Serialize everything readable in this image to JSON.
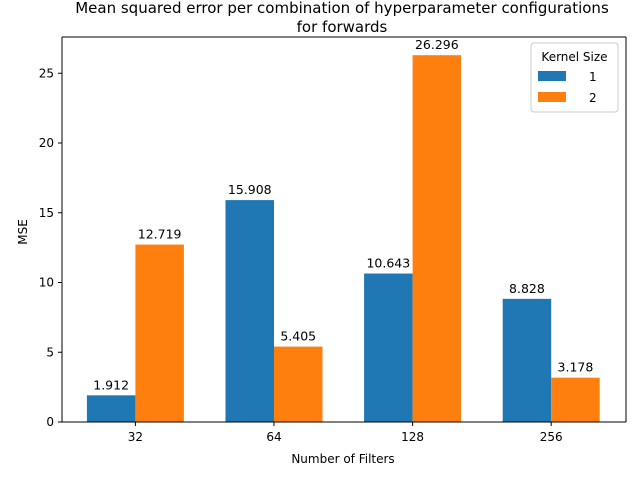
{
  "chart_data": {
    "type": "bar",
    "title_lines": [
      "Mean squared error per combination of hyperparameter configurations",
      "for forwards"
    ],
    "xlabel": "Number of Filters",
    "ylabel": "MSE",
    "categories": [
      "32",
      "64",
      "128",
      "256"
    ],
    "ylim": [
      0,
      27.6
    ],
    "yticks": [
      0,
      5,
      10,
      15,
      20,
      25
    ],
    "grid": false,
    "legend": {
      "title": "Kernel Size",
      "placement": "top-right"
    },
    "series": [
      {
        "name": "1",
        "color": "#1f77b4",
        "values": [
          1.912,
          15.908,
          10.643,
          8.828
        ]
      },
      {
        "name": "2",
        "color": "#ff7f0e",
        "values": [
          12.719,
          5.405,
          26.296,
          3.178
        ]
      }
    ]
  }
}
